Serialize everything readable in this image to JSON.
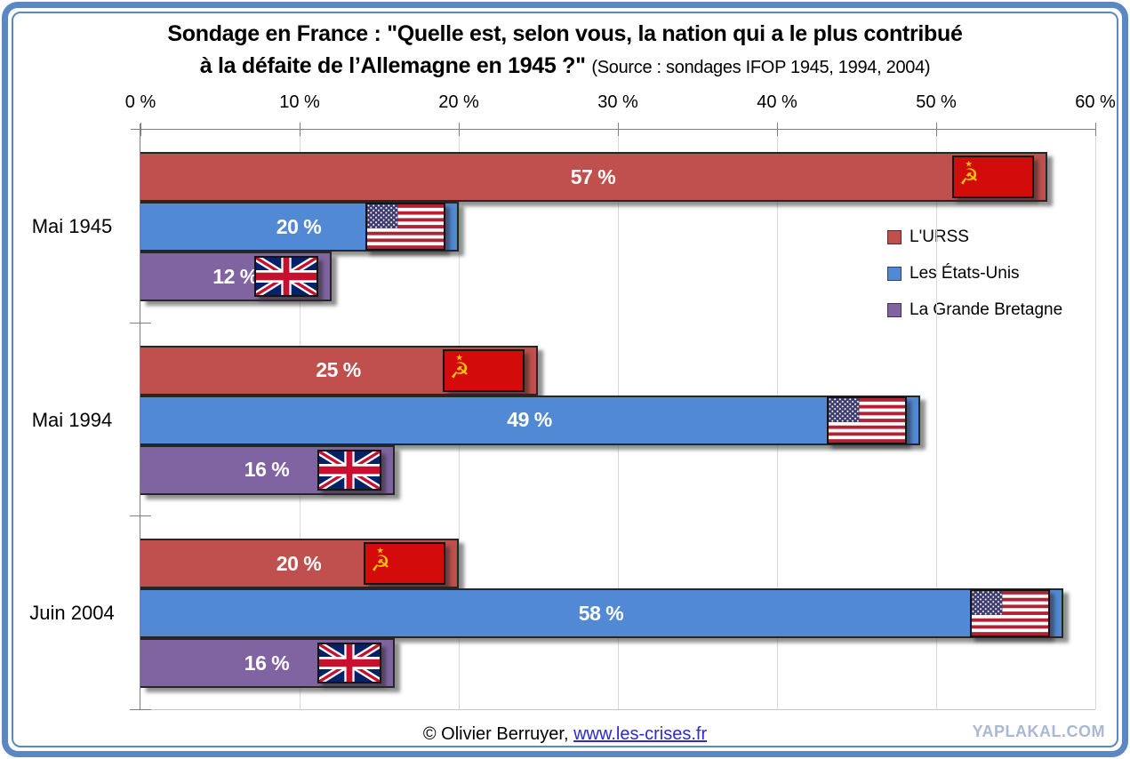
{
  "title": {
    "line1": "Sondage en France : \"Quelle est, selon vous, la nation qui a le plus contribué",
    "line2": "à la défaite de l’Allemagne en 1945 ?\"",
    "source": "(Source : sondages IFOP 1945, 1994, 2004)"
  },
  "chart_data": {
    "type": "bar",
    "orientation": "horizontal",
    "title": "Sondage en France : \"Quelle est, selon vous, la nation qui a le plus contribué à la défaite de l’Allemagne en 1945 ?\"",
    "subtitle": "(Source : sondages IFOP 1945, 1994, 2004)",
    "categories": [
      "Mai 1945",
      "Mai 1994",
      "Juin 2004"
    ],
    "series": [
      {
        "name": "L'URSS",
        "color": "#c0504d",
        "flag": "ussr",
        "values": [
          57,
          25,
          20
        ]
      },
      {
        "name": "Les États-Unis",
        "color": "#5289d5",
        "flag": "usa",
        "values": [
          20,
          49,
          58
        ]
      },
      {
        "name": "La Grande Bretagne",
        "color": "#8064a2",
        "flag": "uk",
        "values": [
          12,
          16,
          16
        ]
      }
    ],
    "value_suffix": " %",
    "xlim": [
      0,
      60
    ],
    "x_ticks": [
      "0 %",
      "10 %",
      "20 %",
      "30 %",
      "40 %",
      "50 %",
      "60 %"
    ],
    "grid": true,
    "legend_position": "right-upper"
  },
  "footer": {
    "copyright": "© Olivier Berruyer,",
    "link": "www.les-crises.fr"
  },
  "watermark": "YAPLAKAL.COM",
  "colors": {
    "frame": "#5b87c3",
    "gridline": "#d9d9d9",
    "axis": "#808080",
    "bar_value_text": "#ffffff",
    "link": "#2a2ad4",
    "watermark": "#aab8d0",
    "ussr_flag_red": "#d40b0b",
    "ussr_flag_gold": "#f8c300",
    "usa_flag_red": "#b22234",
    "usa_flag_blue": "#3c3b6e",
    "uk_flag_blue": "#012169",
    "uk_flag_red": "#c8102e"
  }
}
